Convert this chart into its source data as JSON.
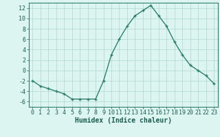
{
  "x": [
    0,
    1,
    2,
    3,
    4,
    5,
    6,
    7,
    8,
    9,
    10,
    11,
    12,
    13,
    14,
    15,
    16,
    17,
    18,
    19,
    20,
    21,
    22,
    23
  ],
  "y": [
    -2,
    -3,
    -3.5,
    -4,
    -4.5,
    -5.5,
    -5.5,
    -5.5,
    -5.5,
    -2,
    3,
    6,
    8.5,
    10.5,
    11.5,
    12.5,
    10.5,
    8.5,
    5.5,
    3,
    1,
    0,
    -1,
    -2.5
  ],
  "line_color": "#2e7d6e",
  "marker": "+",
  "marker_size": 3,
  "linewidth": 1.0,
  "bg_color": "#ddf5f0",
  "grid_color": "#aed6cc",
  "xlabel": "Humidex (Indice chaleur)",
  "xlabel_fontsize": 7,
  "xlabel_color": "#1a5c50",
  "ylabel_ticks": [
    -6,
    -4,
    -2,
    0,
    2,
    4,
    6,
    8,
    10,
    12
  ],
  "xtick_labels": [
    "0",
    "1",
    "2",
    "3",
    "4",
    "5",
    "6",
    "7",
    "8",
    "9",
    "10",
    "11",
    "12",
    "13",
    "14",
    "15",
    "16",
    "17",
    "18",
    "19",
    "20",
    "21",
    "22",
    "23"
  ],
  "xlim": [
    -0.5,
    23.5
  ],
  "ylim": [
    -7,
    13
  ],
  "tick_fontsize": 6,
  "tick_color": "#1a5c50",
  "spine_color": "#2e7d6e"
}
